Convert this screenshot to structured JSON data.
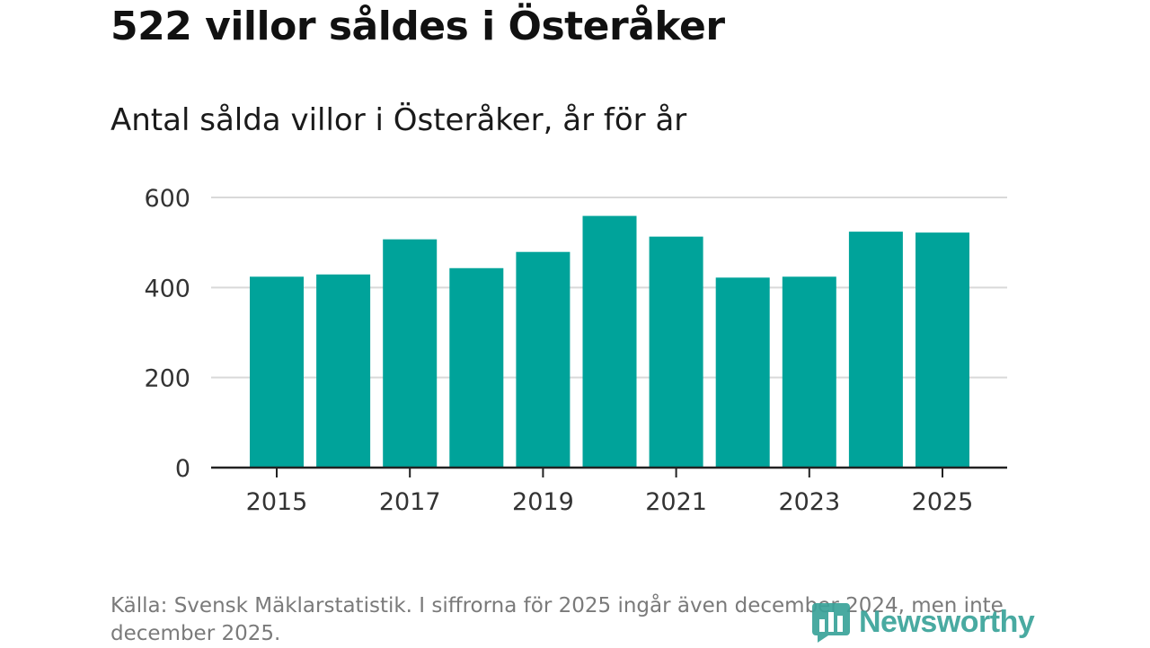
{
  "title": "522 villor såldes i Österåker",
  "subtitle": "Antal sålda villor i Österåker, år för år",
  "source": "Källa: Svensk Mäklarstatistik. I siffrorna för 2025 ingår även december 2024, men inte december 2025.",
  "logo": {
    "text": "Newsworthy",
    "icon": "bar-chart-icon"
  },
  "colors": {
    "bar": "#00a39a",
    "grid": "#d9d9d9",
    "axis": "#222222",
    "logo": "#3aa39a"
  },
  "chart_data": {
    "type": "bar",
    "title": "Antal sålda villor i Österåker, år för år",
    "categories": [
      "2015",
      "2016",
      "2017",
      "2018",
      "2019",
      "2020",
      "2021",
      "2022",
      "2023",
      "2024",
      "2025"
    ],
    "values": [
      424,
      429,
      507,
      443,
      479,
      559,
      513,
      422,
      424,
      524,
      522
    ],
    "ylim": [
      0,
      600
    ],
    "yticks": [
      0,
      200,
      400,
      600
    ],
    "xticks": [
      "2015",
      "2017",
      "2019",
      "2021",
      "2023",
      "2025"
    ],
    "xlabel": "",
    "ylabel": "",
    "grid": true
  }
}
